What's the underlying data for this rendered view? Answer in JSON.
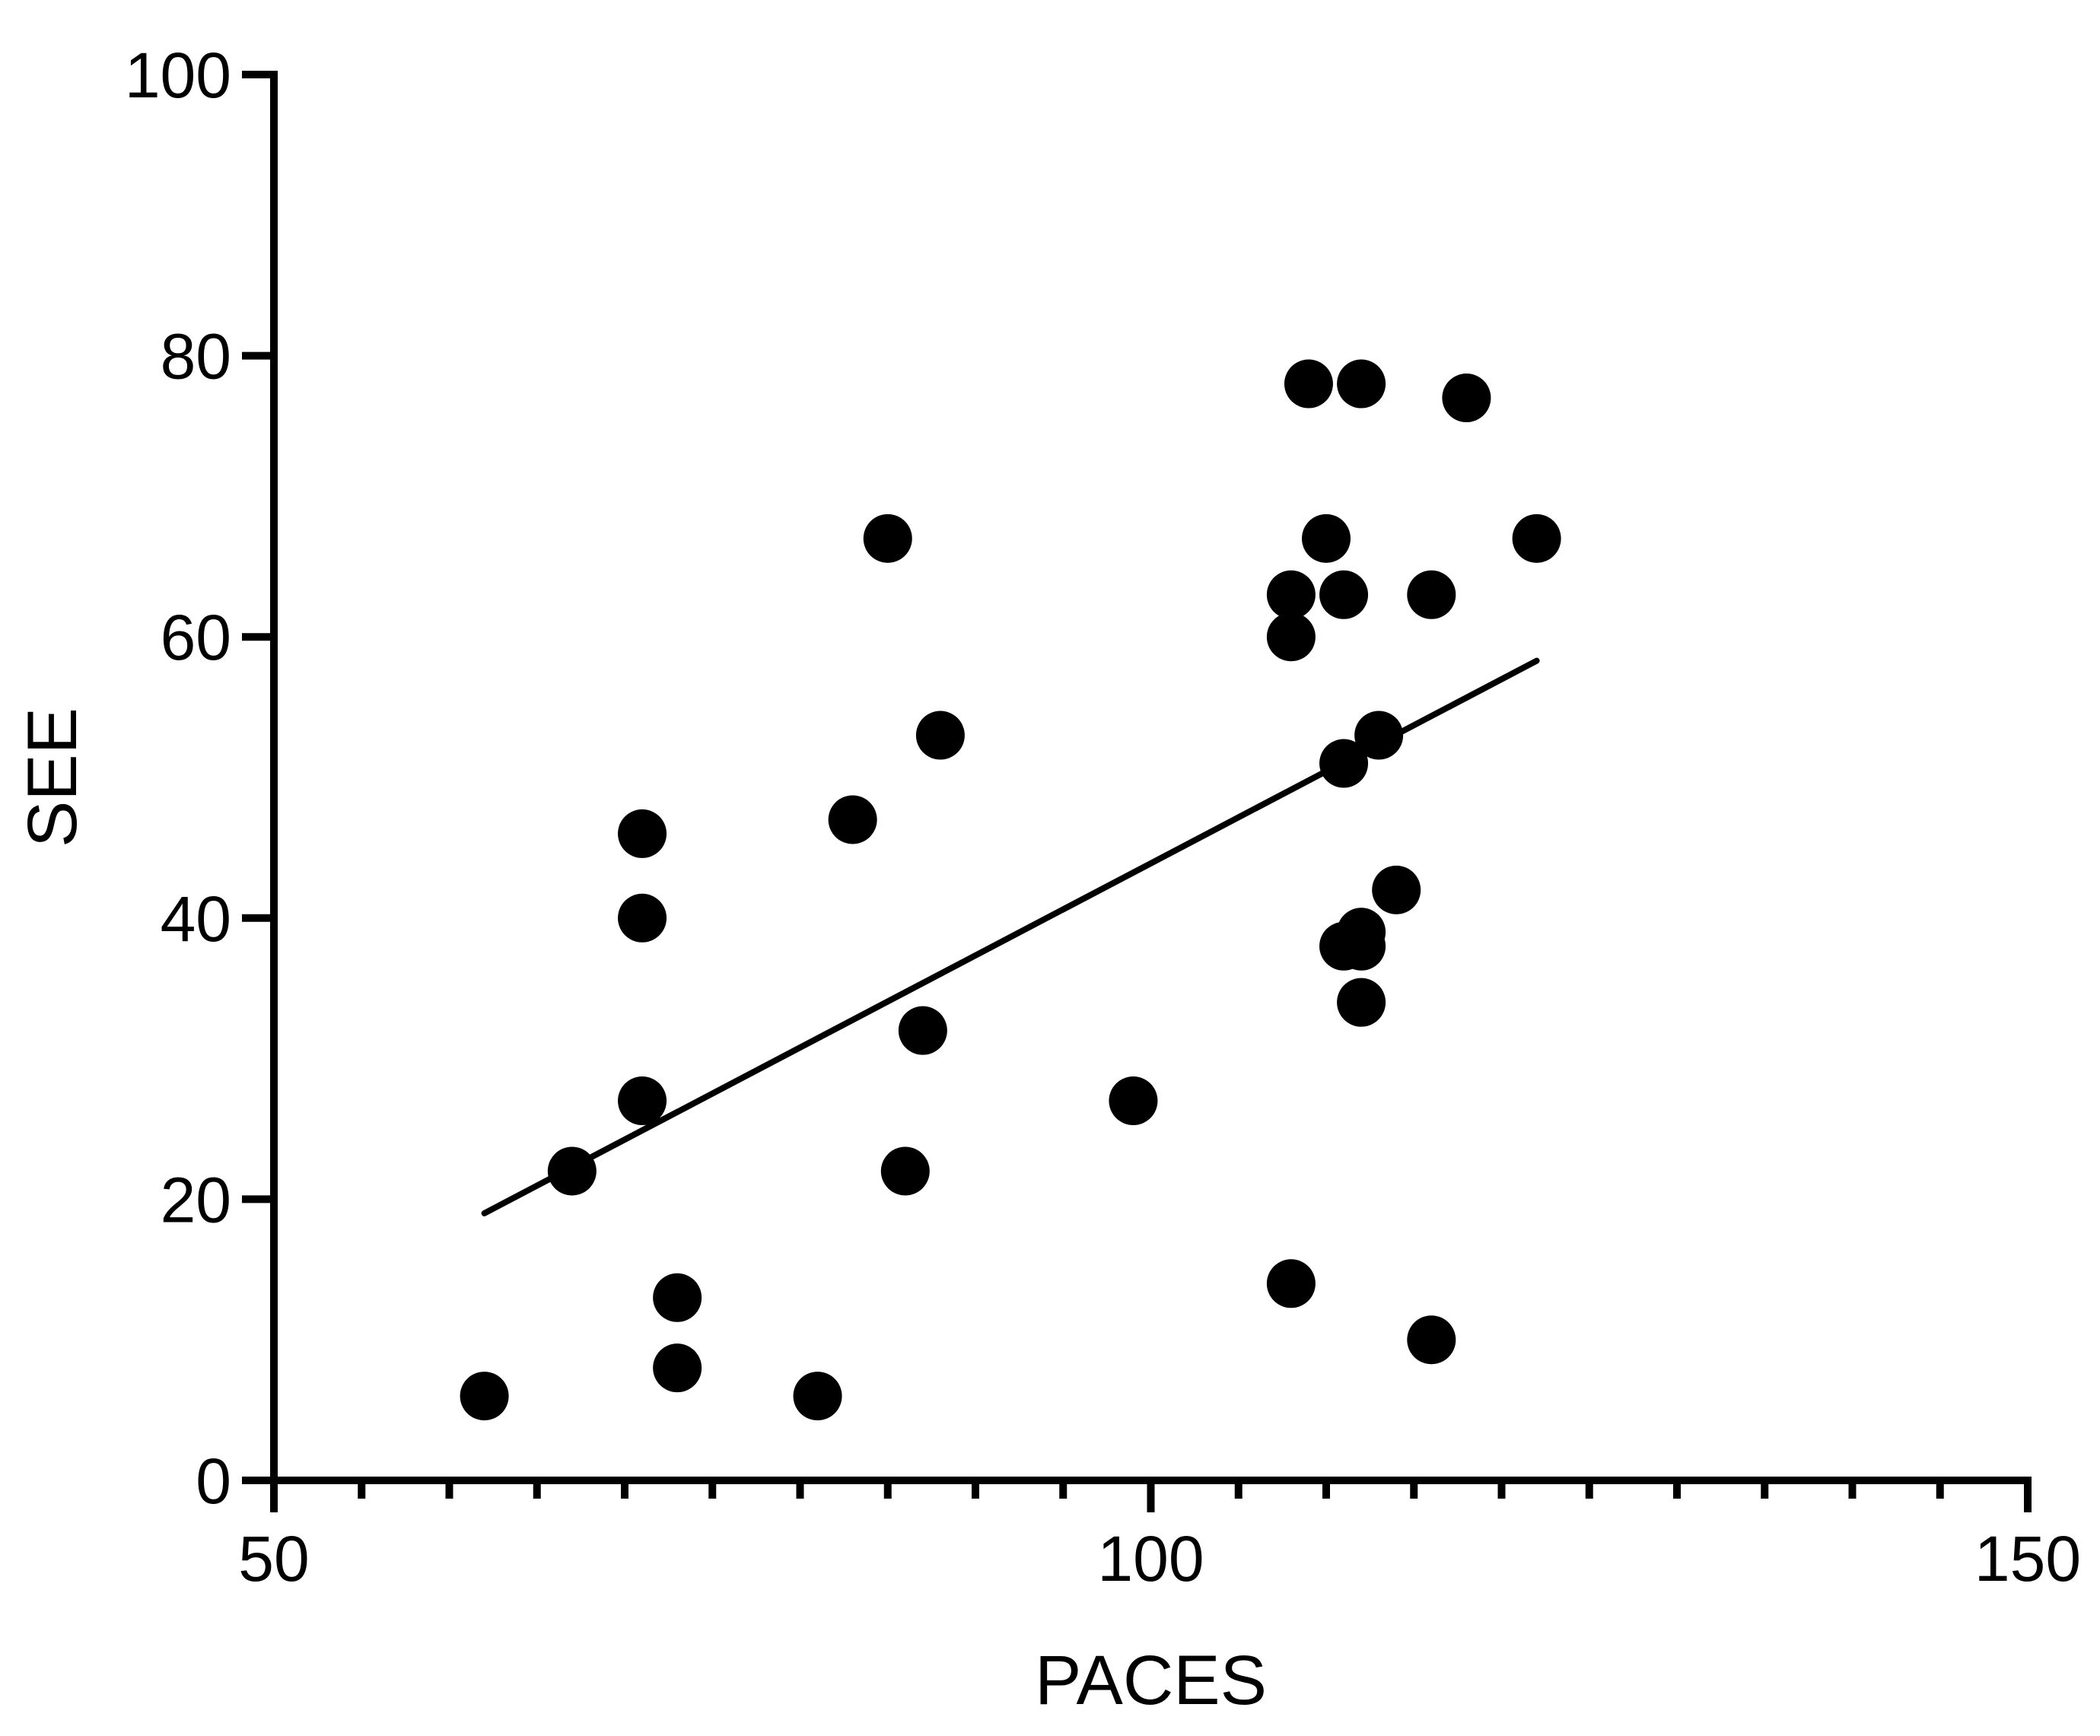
{
  "chart_data": {
    "type": "scatter",
    "title": "",
    "xlabel": "PACES",
    "ylabel": "SEE",
    "xlim": [
      50,
      150
    ],
    "ylim": [
      0,
      100
    ],
    "x_ticks": [
      50,
      100,
      150
    ],
    "x_minor_step": 5,
    "y_ticks": [
      0,
      20,
      40,
      60,
      80,
      100
    ],
    "grid": false,
    "legend": "none",
    "marker_color": "#000000",
    "line_color": "#000000",
    "series": [
      {
        "points": [
          {
            "x": 62,
            "y": 6
          },
          {
            "x": 67,
            "y": 22
          },
          {
            "x": 71,
            "y": 46
          },
          {
            "x": 71,
            "y": 40
          },
          {
            "x": 71,
            "y": 27
          },
          {
            "x": 73,
            "y": 13
          },
          {
            "x": 73,
            "y": 8
          },
          {
            "x": 81,
            "y": 6
          },
          {
            "x": 83,
            "y": 47
          },
          {
            "x": 85,
            "y": 67
          },
          {
            "x": 86,
            "y": 22
          },
          {
            "x": 87,
            "y": 32
          },
          {
            "x": 88,
            "y": 53
          },
          {
            "x": 99,
            "y": 27
          },
          {
            "x": 108,
            "y": 14
          },
          {
            "x": 108,
            "y": 63
          },
          {
            "x": 108,
            "y": 60
          },
          {
            "x": 109,
            "y": 78
          },
          {
            "x": 110,
            "y": 67
          },
          {
            "x": 111,
            "y": 63
          },
          {
            "x": 111,
            "y": 51
          },
          {
            "x": 111,
            "y": 38
          },
          {
            "x": 112,
            "y": 78
          },
          {
            "x": 112,
            "y": 39
          },
          {
            "x": 112,
            "y": 38
          },
          {
            "x": 112,
            "y": 34
          },
          {
            "x": 113,
            "y": 53
          },
          {
            "x": 114,
            "y": 42
          },
          {
            "x": 116,
            "y": 63
          },
          {
            "x": 116,
            "y": 10
          },
          {
            "x": 118,
            "y": 77
          },
          {
            "x": 122,
            "y": 67
          }
        ]
      }
    ],
    "trendline": {
      "type": "linear",
      "x_start": 62,
      "y_start": 19,
      "x_end": 122,
      "y_end": 58.3
    }
  }
}
